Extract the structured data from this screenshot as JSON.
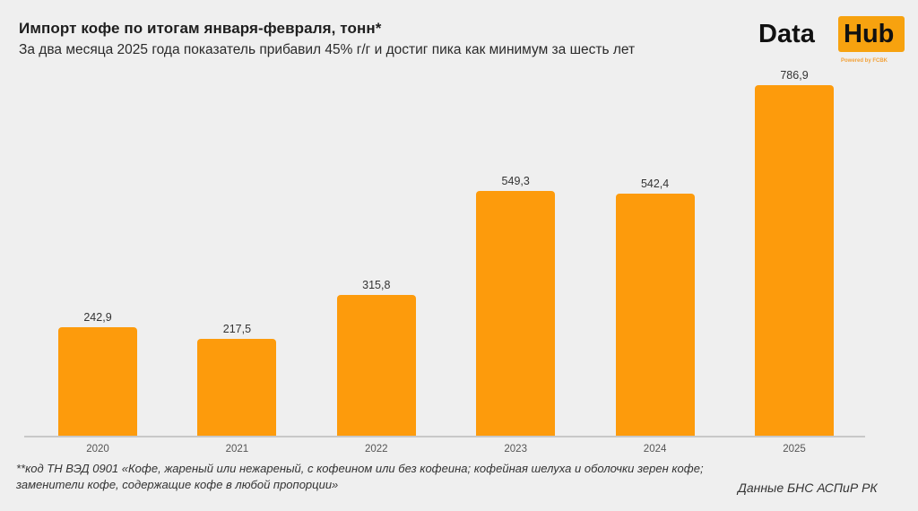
{
  "header": {
    "title": "Импорт кофе по итогам января-февраля, тонн*",
    "subtitle": "За два месяца 2025 года показатель прибавил 45% г/г и достиг пика как минимум за шесть лет"
  },
  "logo": {
    "word1": "Data",
    "word2": "Hub",
    "powered": "Powered by FCBK",
    "accent_color": "#f7a20f"
  },
  "footer": {
    "footnote": "**код ТН ВЭД 0901 «Кофе, жареный или нежареный, с кофеином или без кофеина; кофейная шелуха и оболочки зерен кофе; заменители кофе, содержащие кофе в любой пропорции»",
    "source": "Данные БНС АСПиР РК"
  },
  "chart_data": {
    "type": "bar",
    "title": "Импорт кофе по итогам января-февраля, тонн*",
    "subtitle": "За два месяца 2025 года показатель прибавил 45% г/г и достиг пика как минимум за шесть лет",
    "categories": [
      "2020",
      "2021",
      "2022",
      "2023",
      "2024",
      "2025"
    ],
    "values": [
      242.9,
      217.5,
      315.8,
      549.3,
      542.4,
      786.9
    ],
    "value_labels": [
      "242,9",
      "217,5",
      "315,8",
      "549,3",
      "542,4",
      "786,9"
    ],
    "xlabel": "",
    "ylabel": "тонн",
    "ylim": [
      0,
      800
    ],
    "grid": false,
    "legend": null,
    "bar_color": "#fd9b0c"
  }
}
